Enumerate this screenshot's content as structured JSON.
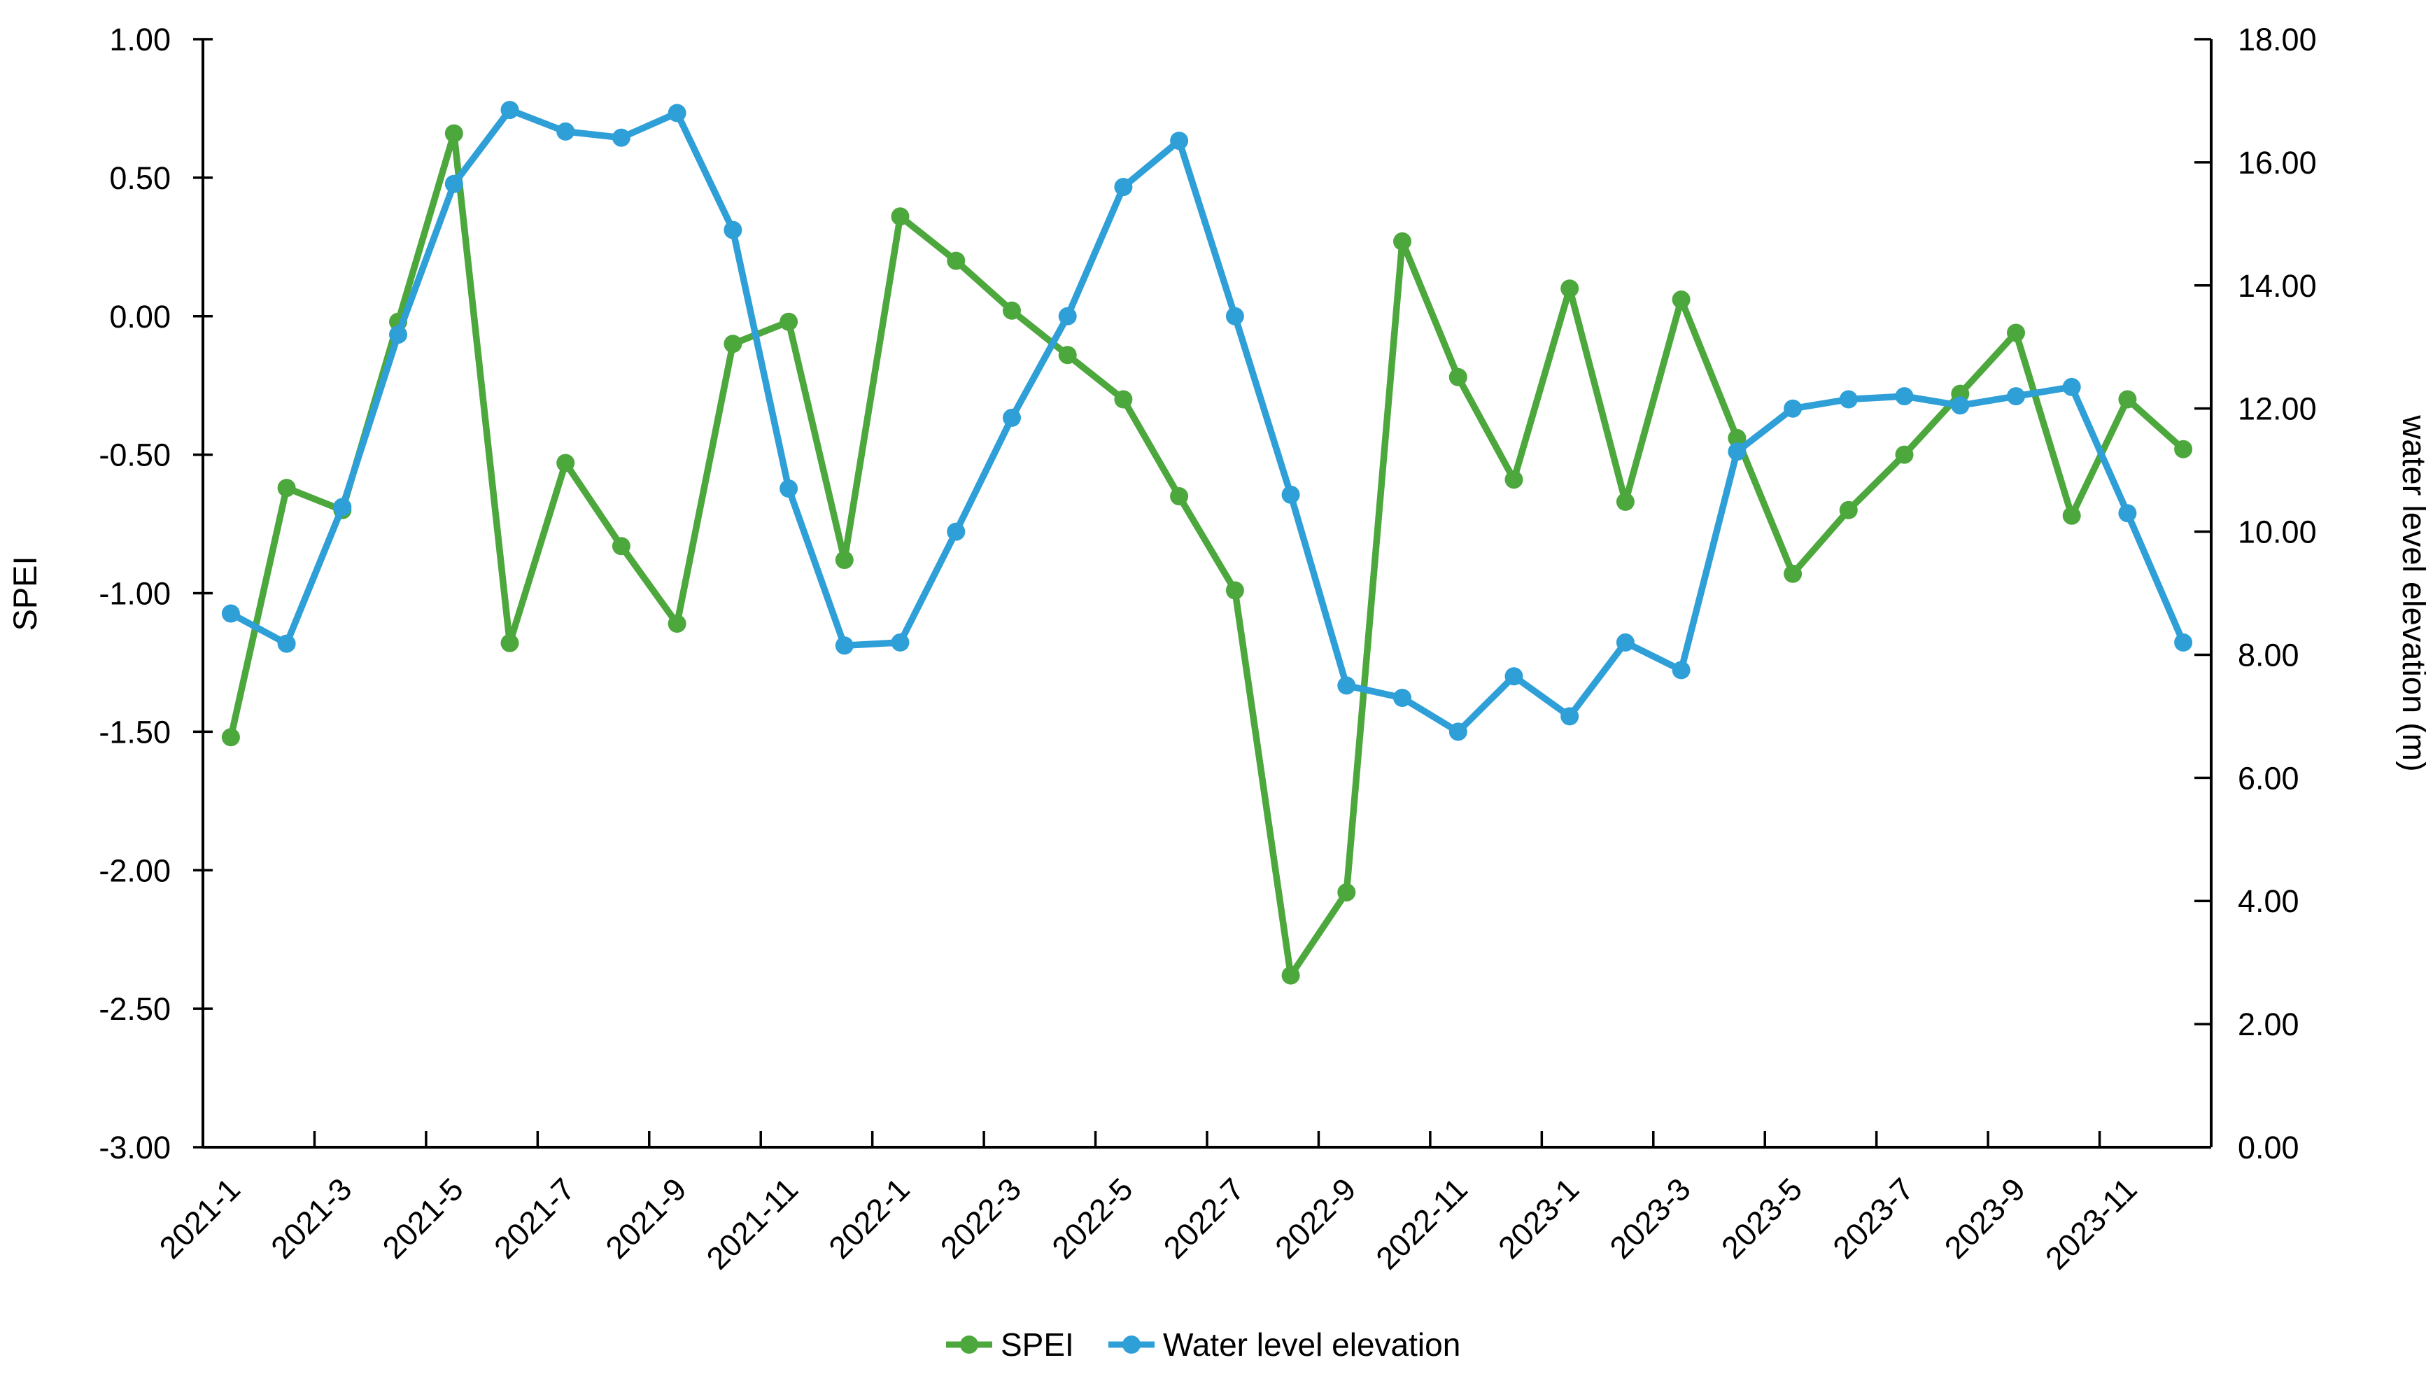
{
  "chart_data": {
    "type": "line",
    "title": "",
    "categories": [
      "2021-1",
      "2021-2",
      "2021-3",
      "2021-4",
      "2021-5",
      "2021-6",
      "2021-7",
      "2021-8",
      "2021-9",
      "2021-10",
      "2021-11",
      "2021-12",
      "2022-1",
      "2022-2",
      "2022-3",
      "2022-4",
      "2022-5",
      "2022-6",
      "2022-7",
      "2022-8",
      "2022-9",
      "2022-10",
      "2022-11",
      "2022-12",
      "2023-1",
      "2023-2",
      "2023-3",
      "2023-4",
      "2023-5",
      "2023-6",
      "2023-7",
      "2023-8",
      "2023-9",
      "2023-10",
      "2023-11",
      "2023-12"
    ],
    "x_tick_labels": [
      "2021-1",
      "2021-3",
      "2021-5",
      "2021-7",
      "2021-9",
      "2021-11",
      "2022-1",
      "2022-3",
      "2022-5",
      "2022-7",
      "2022-9",
      "2022-11",
      "2023-1",
      "2023-3",
      "2023-5",
      "2023-7",
      "2023-9",
      "2023-11"
    ],
    "x_tick_label_interval": 2,
    "grid": false,
    "legend_position": "bottom",
    "series": [
      {
        "name": "SPEI",
        "axis": "left",
        "color": "#4CA73C",
        "marker": "circle",
        "values": [
          -1.52,
          -0.62,
          -0.7,
          -0.02,
          0.66,
          -1.18,
          -0.53,
          -0.83,
          -1.11,
          -0.1,
          -0.02,
          -0.88,
          0.36,
          0.2,
          0.02,
          -0.14,
          -0.3,
          -0.65,
          -0.99,
          -2.38,
          -2.08,
          0.27,
          -0.22,
          -0.59,
          0.1,
          -0.67,
          0.06,
          -0.44,
          -0.93,
          -0.7,
          -0.5,
          -0.28,
          -0.06,
          -0.72,
          -0.3,
          -0.48
        ]
      },
      {
        "name": "Water level elevation",
        "axis": "right",
        "color": "#2F9FD8",
        "marker": "circle",
        "values": [
          8.67,
          8.18,
          10.4,
          13.2,
          15.65,
          16.85,
          16.5,
          16.4,
          16.8,
          14.9,
          10.7,
          8.15,
          8.2,
          10.0,
          11.85,
          13.5,
          15.6,
          16.35,
          13.5,
          10.6,
          7.5,
          7.3,
          6.75,
          7.65,
          7.0,
          8.2,
          7.75,
          11.3,
          12.0,
          12.15,
          12.2,
          12.05,
          12.2,
          12.35,
          10.3,
          8.2
        ]
      }
    ],
    "left_axis": {
      "label": "SPEI",
      "min": -3.0,
      "max": 1.0,
      "step": 0.5,
      "tick_labels": [
        "1.00",
        "0.50",
        "0.00",
        "-0.50",
        "-1.00",
        "-1.50",
        "-2.00",
        "-2.50",
        "-3.00"
      ]
    },
    "right_axis": {
      "label": "water level elevation (m)",
      "min": 0.0,
      "max": 18.0,
      "step": 2.0,
      "tick_labels": [
        "18.00",
        "16.00",
        "14.00",
        "12.00",
        "10.00",
        "8.00",
        "6.00",
        "4.00",
        "2.00",
        "0.00"
      ]
    },
    "legend": [
      {
        "label": "SPEI",
        "color": "#4CA73C"
      },
      {
        "label": "Water level elevation",
        "color": "#2F9FD8"
      }
    ]
  }
}
